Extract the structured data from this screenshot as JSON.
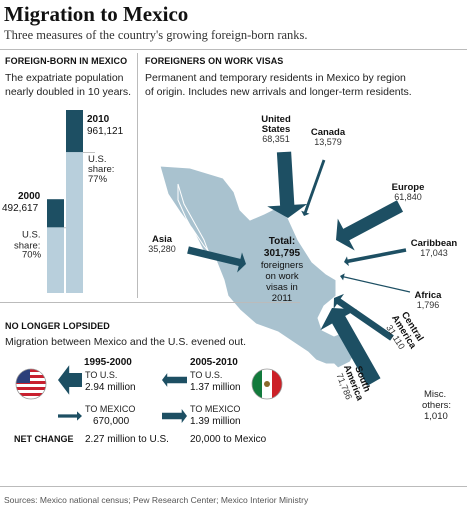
{
  "header": {
    "title": "Migration to Mexico",
    "subtitle": "Three measures of the country's growing foreign-born ranks."
  },
  "foreign_born": {
    "heading": "FOREIGN-BORN IN MEXICO",
    "description_line1": "The expatriate population",
    "description_line2": "nearly doubled in 10 years."
  },
  "work_visas": {
    "heading": "FOREIGNERS ON WORK VISAS",
    "description_line1": "Permanent and temporary residents in Mexico by region",
    "description_line2": "of origin. Includes new arrivals and longer-term residents.",
    "total_label": "Total:",
    "total_value": "301,795",
    "total_caption_lines": [
      "foreigners",
      "on work",
      "visas in",
      "2011"
    ],
    "misc_lines": [
      "Misc.",
      "others:",
      "1,010"
    ]
  },
  "lopsided": {
    "heading": "NO LONGER LOPSIDED",
    "description": "Migration between Mexico and the U.S. evened out.",
    "period1": "1995-2000",
    "period2": "2005-2010",
    "to_us_label": "TO U.S.",
    "to_mexico_label": "TO MEXICO",
    "p1_to_us": "2.94 million",
    "p2_to_us": "1.37 million",
    "p1_to_mexico": "670,000",
    "p2_to_mexico": "1.39 million",
    "net_change_label": "NET CHANGE",
    "p1_net": "2.27 million to U.S.",
    "p2_net": "20,000 to Mexico"
  },
  "source": "Sources: Mexico national census; Pew Research Center; Mexico Interior Ministry",
  "colors": {
    "dark_teal": "#1d4f63",
    "light_blue": "#b8cfdc",
    "map_fill": "#a9c2cf"
  },
  "chart_data": [
    {
      "type": "bar",
      "title": "FOREIGN-BORN IN MEXICO",
      "categories": [
        "2000",
        "2010"
      ],
      "series": [
        {
          "name": "U.S. share",
          "values": [
            344832,
            740063
          ]
        },
        {
          "name": "Other",
          "values": [
            147785,
            221058
          ]
        }
      ],
      "totals": [
        {
          "year": "2000",
          "value_label": "492,617",
          "value": 492617,
          "share_label": "U.S. share:",
          "share": "70%"
        },
        {
          "year": "2010",
          "value_label": "961,121",
          "value": 961121,
          "share_label": "U.S. share:",
          "share": "77%"
        }
      ],
      "ylim": [
        0,
        961121
      ]
    },
    {
      "type": "flow-map",
      "title": "FOREIGNERS ON WORK VISAS",
      "total": 301795,
      "regions": [
        {
          "name": "United States",
          "label_lines": [
            "United",
            "States"
          ],
          "value": 68351,
          "value_label": "68,351"
        },
        {
          "name": "Canada",
          "label_lines": [
            "Canada"
          ],
          "value": 13579,
          "value_label": "13,579"
        },
        {
          "name": "Europe",
          "label_lines": [
            "Europe"
          ],
          "value": 61840,
          "value_label": "61,840"
        },
        {
          "name": "Caribbean",
          "label_lines": [
            "Caribbean"
          ],
          "value": 17043,
          "value_label": "17,043"
        },
        {
          "name": "Africa",
          "label_lines": [
            "Africa"
          ],
          "value": 1796,
          "value_label": "1,796"
        },
        {
          "name": "Central America",
          "label_lines": [
            "Central",
            "America"
          ],
          "value": 31110,
          "value_label": "31,110"
        },
        {
          "name": "South America",
          "label_lines": [
            "South",
            "America"
          ],
          "value": 71786,
          "value_label": "71,786"
        },
        {
          "name": "Asia",
          "label_lines": [
            "Asia"
          ],
          "value": 35280,
          "value_label": "35,280"
        }
      ],
      "misc_others": 1010
    },
    {
      "type": "flow",
      "title": "NO LONGER LOPSIDED",
      "periods": [
        "1995-2000",
        "2005-2010"
      ],
      "to_us": [
        2940000,
        1370000
      ],
      "to_mexico": [
        670000,
        1390000
      ]
    }
  ]
}
